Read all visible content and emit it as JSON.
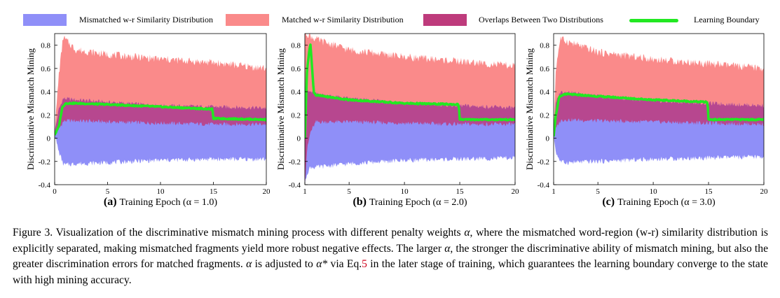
{
  "legend": [
    {
      "label": "Mismatched w-r Similarity Distribution",
      "color": "#8f8ff8"
    },
    {
      "label": "Matched w-r Similarity Distribution",
      "color": "#fa8a8a"
    },
    {
      "label": "Overlaps Between Two Distributions",
      "color": "#be3b7c"
    },
    {
      "label": "Learning Boundary",
      "color": "#22e822"
    }
  ],
  "chart_data": [
    {
      "type": "area",
      "panel_label": "(a)",
      "xlabel": "Training Epoch (α = 1.0)",
      "ylabel": "Discriminative Mismatch Mining",
      "xlim": [
        0,
        20
      ],
      "ylim": [
        -0.4,
        0.9
      ],
      "xticks": [
        0,
        5,
        10,
        15,
        20
      ],
      "yticks": [
        -0.4,
        -0.2,
        0,
        0.2,
        0.4,
        0.6,
        0.8
      ],
      "series": [
        {
          "name": "Mismatched w-r Similarity Distribution",
          "x": [
            0,
            0.4,
            0.8,
            1,
            2,
            5,
            10,
            15,
            20
          ],
          "low": [
            0.03,
            -0.12,
            -0.22,
            -0.23,
            -0.22,
            -0.21,
            -0.19,
            -0.18,
            -0.18
          ],
          "high": [
            0.05,
            0.25,
            0.34,
            0.34,
            0.33,
            0.31,
            0.28,
            0.27,
            0.26
          ]
        },
        {
          "name": "Matched w-r Similarity Distribution",
          "x": [
            0,
            0.4,
            0.8,
            1,
            2,
            5,
            10,
            15,
            20
          ],
          "low": [
            0.03,
            0.08,
            0.14,
            0.15,
            0.15,
            0.14,
            0.13,
            0.12,
            0.12
          ],
          "high": [
            0.05,
            0.55,
            0.87,
            0.85,
            0.76,
            0.72,
            0.68,
            0.65,
            0.6
          ]
        },
        {
          "name": "Learning Boundary",
          "x": [
            0,
            0.4,
            0.7,
            1,
            2,
            5,
            10,
            14.9,
            15,
            20
          ],
          "values": [
            0.03,
            0.1,
            0.26,
            0.3,
            0.3,
            0.29,
            0.27,
            0.25,
            0.17,
            0.16
          ]
        }
      ]
    },
    {
      "type": "area",
      "panel_label": "(b)",
      "xlabel": "Training Epoch (α = 2.0)",
      "ylabel": "Discriminative Mismatch Mining",
      "xlim": [
        1,
        20
      ],
      "ylim": [
        -0.4,
        0.9
      ],
      "xticks": [
        1,
        5,
        10,
        15,
        20
      ],
      "yticks": [
        -0.4,
        -0.2,
        0,
        0.2,
        0.4,
        0.6,
        0.8
      ],
      "series": [
        {
          "name": "Mismatched w-r Similarity Distribution",
          "x": [
            1,
            1.2,
            1.5,
            2,
            5,
            10,
            15,
            20
          ],
          "low": [
            -0.4,
            -0.3,
            -0.25,
            -0.25,
            -0.22,
            -0.19,
            -0.18,
            -0.17
          ],
          "high": [
            0.2,
            0.4,
            0.4,
            0.38,
            0.34,
            0.3,
            0.28,
            0.26
          ]
        },
        {
          "name": "Matched w-r Similarity Distribution",
          "x": [
            1,
            1.2,
            1.5,
            2,
            5,
            10,
            15,
            20
          ],
          "low": [
            -0.4,
            -0.1,
            0.05,
            0.14,
            0.14,
            0.13,
            0.12,
            0.12
          ],
          "high": [
            0.9,
            0.9,
            0.88,
            0.85,
            0.76,
            0.7,
            0.66,
            0.62
          ]
        },
        {
          "name": "Learning Boundary",
          "x": [
            1,
            1.2,
            1.5,
            1.8,
            2,
            5,
            10,
            14.9,
            15,
            20
          ],
          "values": [
            0.0,
            0.6,
            0.82,
            0.4,
            0.37,
            0.33,
            0.3,
            0.29,
            0.16,
            0.16
          ]
        }
      ]
    },
    {
      "type": "area",
      "panel_label": "(c)",
      "xlabel": "Training Epoch (α = 3.0)",
      "ylabel": "Discriminative Mismatch Mining",
      "xlim": [
        1,
        20
      ],
      "ylim": [
        -0.4,
        0.9
      ],
      "xticks": [
        1,
        5,
        10,
        15,
        20
      ],
      "yticks": [
        -0.4,
        -0.2,
        0,
        0.2,
        0.4,
        0.6,
        0.8
      ],
      "series": [
        {
          "name": "Mismatched w-r Similarity Distribution",
          "x": [
            1,
            1.2,
            1.6,
            2,
            5,
            10,
            15,
            20
          ],
          "low": [
            0.03,
            -0.12,
            -0.2,
            -0.21,
            -0.2,
            -0.18,
            -0.17,
            -0.16
          ],
          "high": [
            0.05,
            0.3,
            0.4,
            0.4,
            0.36,
            0.32,
            0.3,
            0.28
          ]
        },
        {
          "name": "Matched w-r Similarity Distribution",
          "x": [
            1,
            1.2,
            1.6,
            2,
            5,
            10,
            15,
            20
          ],
          "low": [
            0.03,
            0.08,
            0.15,
            0.16,
            0.15,
            0.14,
            0.13,
            0.12
          ],
          "high": [
            0.05,
            0.6,
            0.86,
            0.84,
            0.74,
            0.68,
            0.64,
            0.6
          ]
        },
        {
          "name": "Learning Boundary",
          "x": [
            1,
            1.2,
            1.5,
            2,
            5,
            10,
            14.9,
            15,
            20
          ],
          "values": [
            0.02,
            0.2,
            0.35,
            0.38,
            0.36,
            0.33,
            0.31,
            0.16,
            0.16
          ]
        }
      ]
    }
  ],
  "caption": {
    "part1": "Figure 3.  Visualization of the discriminative mismatch mining process with different penalty weights ",
    "alpha1": "α",
    "part2": ", where the mismatched word-region (w-r) similarity distribution is explicitly separated, making mismatched fragments yield more robust negative effects. The larger ",
    "alpha2": "α",
    "part3": ", the stronger the discriminative ability of mismatch mining, but also the greater discrimination errors for matched fragments. ",
    "alpha3": "α",
    "part4": " is adjusted to ",
    "alpha_star": "α*",
    "part5": " via Eq.",
    "eq_ref": "5",
    "part6": " in the later stage of training, which guarantees the learning boundary converge to the state with high mining accuracy."
  }
}
